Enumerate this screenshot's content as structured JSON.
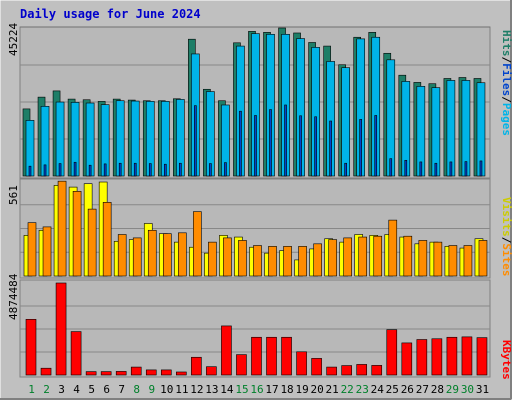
{
  "title": "Daily usage for June 2024",
  "days": [
    "1",
    "2",
    "3",
    "4",
    "5",
    "6",
    "7",
    "8",
    "9",
    "10",
    "11",
    "12",
    "13",
    "14",
    "15",
    "16",
    "17",
    "18",
    "19",
    "20",
    "21",
    "22",
    "23",
    "24",
    "25",
    "26",
    "27",
    "28",
    "29",
    "30",
    "31"
  ],
  "weekend_days": [
    1,
    2,
    8,
    9,
    15,
    16,
    22,
    23,
    29,
    30
  ],
  "colors": {
    "hits": "#1e7e67",
    "files": "#00b4e8",
    "pages": "#0044cc",
    "visits": "#ffff00",
    "sites": "#ff8c00",
    "kbytes": "#ff0000",
    "panel": "#c0c0c0",
    "weekday_label": "#000000",
    "weekend_label": "#00802b"
  },
  "chart_data": [
    {
      "type": "bar",
      "title": "Daily usage for June 2024",
      "axis_max_label": "45224",
      "ylim": [
        0,
        45224
      ],
      "legend": [
        "Pages",
        "Files",
        "Hits"
      ],
      "categories": [
        "1",
        "2",
        "3",
        "4",
        "5",
        "6",
        "7",
        "8",
        "9",
        "10",
        "11",
        "12",
        "13",
        "14",
        "15",
        "16",
        "17",
        "18",
        "19",
        "20",
        "21",
        "22",
        "23",
        "24",
        "25",
        "26",
        "27",
        "28",
        "29",
        "30",
        "31"
      ],
      "series": [
        {
          "name": "Hits",
          "values": [
            20500,
            24100,
            26000,
            23500,
            23300,
            22800,
            23500,
            23200,
            23000,
            23000,
            23600,
            41800,
            26500,
            23000,
            40700,
            44200,
            43900,
            45224,
            43700,
            40800,
            39700,
            34000,
            42400,
            43900,
            37500,
            30800,
            28600,
            28200,
            29800,
            30100,
            29800
          ]
        },
        {
          "name": "Files",
          "values": [
            17000,
            21300,
            22600,
            22500,
            22300,
            21800,
            23000,
            22900,
            22800,
            22800,
            23400,
            37300,
            25800,
            21700,
            39700,
            43500,
            43300,
            43300,
            42000,
            39300,
            35000,
            33100,
            41900,
            42400,
            35500,
            28900,
            27400,
            27000,
            29200,
            29200,
            28500
          ]
        },
        {
          "name": "Pages",
          "values": [
            3000,
            3400,
            3800,
            4200,
            3300,
            3700,
            3900,
            3900,
            3800,
            3600,
            3900,
            21500,
            3800,
            4100,
            19800,
            18500,
            20300,
            21700,
            18400,
            18100,
            16800,
            3900,
            17300,
            18500,
            5300,
            4800,
            4300,
            3900,
            4300,
            4400,
            4600
          ]
        }
      ]
    },
    {
      "type": "bar",
      "axis_max_label": "561",
      "ylim": [
        0,
        561
      ],
      "legend": [
        "Sites",
        "Visits"
      ],
      "categories": [
        "1",
        "2",
        "3",
        "4",
        "5",
        "6",
        "7",
        "8",
        "9",
        "10",
        "11",
        "12",
        "13",
        "14",
        "15",
        "16",
        "17",
        "18",
        "19",
        "20",
        "21",
        "22",
        "23",
        "24",
        "25",
        "26",
        "27",
        "28",
        "29",
        "30",
        "31"
      ],
      "series": [
        {
          "name": "Visits",
          "values": [
            240,
            270,
            535,
            525,
            545,
            555,
            205,
            215,
            310,
            250,
            200,
            170,
            135,
            240,
            230,
            170,
            135,
            150,
            95,
            160,
            220,
            200,
            245,
            240,
            245,
            230,
            190,
            200,
            175,
            165,
            220
          ]
        },
        {
          "name": "Sites",
          "values": [
            315,
            290,
            560,
            500,
            395,
            435,
            245,
            225,
            270,
            250,
            255,
            380,
            200,
            225,
            210,
            180,
            175,
            175,
            175,
            190,
            215,
            225,
            230,
            235,
            330,
            235,
            210,
            200,
            180,
            180,
            210
          ]
        }
      ]
    },
    {
      "type": "bar",
      "axis_max_label": "4874484",
      "ylim": [
        0,
        4874484
      ],
      "legend": [
        "KBytes"
      ],
      "categories": [
        "1",
        "2",
        "3",
        "4",
        "5",
        "6",
        "7",
        "8",
        "9",
        "10",
        "11",
        "12",
        "13",
        "14",
        "15",
        "16",
        "17",
        "18",
        "19",
        "20",
        "21",
        "22",
        "23",
        "24",
        "25",
        "26",
        "27",
        "28",
        "29",
        "30",
        "31"
      ],
      "series": [
        {
          "name": "KBytes",
          "values": [
            2950000,
            360000,
            4874484,
            2300000,
            180000,
            180000,
            190000,
            420000,
            270000,
            270000,
            160000,
            940000,
            440000,
            2600000,
            1080000,
            2000000,
            2000000,
            2000000,
            1230000,
            880000,
            420000,
            500000,
            560000,
            510000,
            2400000,
            1700000,
            1880000,
            1920000,
            2000000,
            2020000,
            1980000
          ]
        }
      ]
    }
  ]
}
